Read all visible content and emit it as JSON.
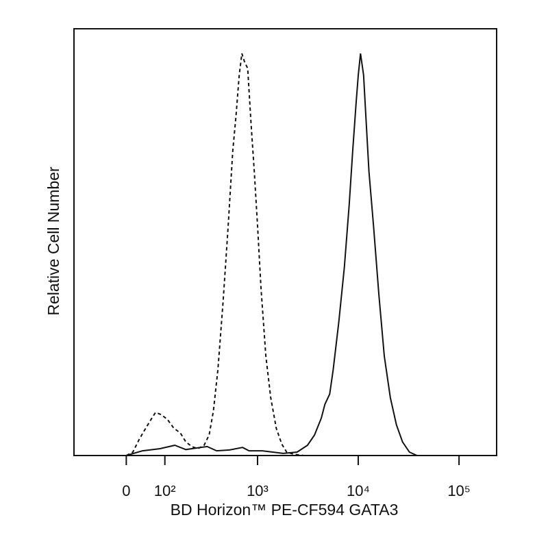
{
  "chart_data": {
    "type": "line",
    "x_label": "BD Horizon™ PE-CF594 GATA3",
    "y_label": "Relative Cell Number",
    "xscale": "biexponential",
    "xlim": [
      -150,
      236000
    ],
    "ylim": [
      0,
      100
    ],
    "xticks": [
      0,
      {
        "value": 100,
        "label": "10²"
      },
      {
        "value": 1000,
        "label": "10³"
      },
      {
        "value": 10000,
        "label": "10⁴"
      },
      {
        "value": 100000,
        "label": "10⁵"
      }
    ],
    "series": [
      {
        "color": "#111111",
        "line_style": "dashed",
        "x": [
          0,
          15,
          31,
          46,
          62,
          72,
          88,
          108,
          131,
          157,
          182,
          212,
          247,
          287,
          324,
          359,
          399,
          451,
          508,
          565,
          609,
          656,
          697,
          740,
          798,
          861,
          927,
          1000,
          1083,
          1210,
          1352,
          1536,
          1742,
          1950,
          2284,
          2897
        ],
        "values": [
          0,
          0.8,
          4.0,
          6.4,
          8.8,
          10.1,
          9.6,
          8.5,
          6.4,
          5.3,
          3.2,
          2.1,
          1.6,
          2.4,
          4.8,
          10.4,
          20.1,
          36.1,
          53.8,
          71.4,
          79.5,
          89.1,
          94.2,
          92.3,
          90.7,
          77.8,
          66.6,
          53.8,
          39.3,
          23.3,
          13.6,
          6.4,
          2.7,
          0.8,
          0.3,
          0
        ]
      },
      {
        "color": "#111111",
        "line_style": "solid",
        "x": [
          0,
          38,
          85,
          135,
          182,
          247,
          309,
          387,
          524,
          708,
          823,
          1117,
          1799,
          2472,
          3138,
          3681,
          4306,
          4667,
          5212,
          5645,
          6412,
          7278,
          8128,
          8810,
          9528,
          10000,
          10540,
          11300,
          11910,
          12770,
          14190,
          16030,
          18120,
          20800,
          23920,
          27500,
          32210,
          38300
        ],
        "values": [
          0,
          1.1,
          1.6,
          2.4,
          1.4,
          1.8,
          2.1,
          1.1,
          1.3,
          1.9,
          1.1,
          1.1,
          0.5,
          0.8,
          2.4,
          4.8,
          8.8,
          12.0,
          14.4,
          20.1,
          31.3,
          44.1,
          58.6,
          71.4,
          82.7,
          89.1,
          94.2,
          89.1,
          79.5,
          66.6,
          53.8,
          37.7,
          23.3,
          13.6,
          7.2,
          3.2,
          0.8,
          0
        ]
      }
    ]
  }
}
